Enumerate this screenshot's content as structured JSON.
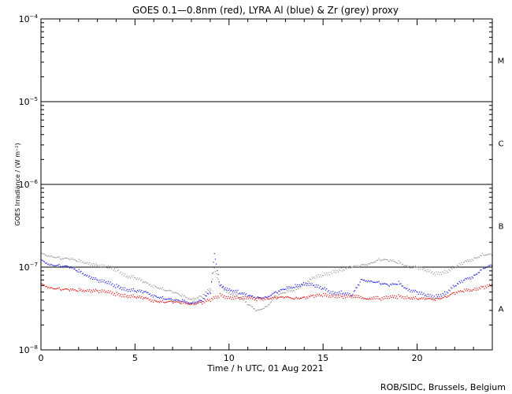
{
  "chart_data": {
    "type": "scatter",
    "title": "GOES 0.1—0.8nm (red), LYRA Al (blue) & Zr (grey) proxy",
    "xlabel": "Time / h UTC, 01 Aug 2021",
    "ylabel": "GOES Irradiance / (W m⁻²)",
    "credit": "ROB/SIDC, Brussels, Belgium",
    "xlim": [
      0,
      24
    ],
    "ylim": [
      1e-08,
      0.0001
    ],
    "yscale": "log",
    "x_ticks": [
      {
        "value": 0,
        "label": "0"
      },
      {
        "value": 5,
        "label": "5"
      },
      {
        "value": 10,
        "label": "10"
      },
      {
        "value": 15,
        "label": "15"
      },
      {
        "value": 20,
        "label": "20"
      }
    ],
    "y_ticks": [
      {
        "value": 1e-08,
        "base": "10",
        "exp": "−8"
      },
      {
        "value": 1e-07,
        "base": "10",
        "exp": "−7"
      },
      {
        "value": 1e-06,
        "base": "10",
        "exp": "−6"
      },
      {
        "value": 1e-05,
        "base": "10",
        "exp": "−5"
      },
      {
        "value": 0.0001,
        "base": "10",
        "exp": "−4"
      }
    ],
    "class_lines": [
      1e-07,
      1e-06,
      1e-05
    ],
    "flare_classes": [
      {
        "label": "A",
        "level": 3.16e-08
      },
      {
        "label": "B",
        "level": 3.16e-07
      },
      {
        "label": "C",
        "level": 3.16e-06
      },
      {
        "label": "M",
        "level": 3.16e-05
      }
    ],
    "series": [
      {
        "color": "#9a9a9a",
        "x": [
          0,
          0.5,
          1,
          1.5,
          2,
          2.5,
          3,
          3.5,
          4,
          4.5,
          5,
          5.5,
          6,
          6.5,
          7,
          7.5,
          8,
          8.5,
          9,
          9.2,
          9.5,
          10,
          10.5,
          11,
          11.5,
          12,
          12.5,
          13,
          13.5,
          14,
          14.5,
          15,
          15.5,
          16,
          16.5,
          17,
          17.5,
          18,
          18.5,
          19,
          19.5,
          20,
          20.5,
          21,
          21.5,
          22,
          22.5,
          23,
          23.5,
          24
        ],
        "y": [
          1.45e-07,
          1.4e-07,
          1.3e-07,
          1.25e-07,
          1.2e-07,
          1.15e-07,
          1.05e-07,
          1e-07,
          9.5e-08,
          8e-08,
          7.5e-08,
          6.5e-08,
          6e-08,
          5.5e-08,
          5e-08,
          4.5e-08,
          4.2e-08,
          4.5e-08,
          5.5e-08,
          1e-07,
          6e-08,
          5e-08,
          4.5e-08,
          3.5e-08,
          3e-08,
          3.5e-08,
          4.5e-08,
          5e-08,
          5.5e-08,
          6.5e-08,
          7.5e-08,
          8e-08,
          9e-08,
          9.5e-08,
          1e-07,
          1.05e-07,
          1.15e-07,
          1.25e-07,
          1.2e-07,
          1.15e-07,
          1.05e-07,
          1e-07,
          9e-08,
          8.5e-08,
          9e-08,
          1e-07,
          1.15e-07,
          1.3e-07,
          1.45e-07,
          1.4e-07
        ]
      },
      {
        "color": "#1f1fdd",
        "x": [
          0,
          0.5,
          1,
          1.5,
          2,
          2.5,
          3,
          3.5,
          4,
          4.5,
          5,
          5.5,
          6,
          6.5,
          7,
          7.5,
          8,
          8.5,
          9,
          9.2,
          9.5,
          10,
          10.5,
          11,
          11.5,
          12,
          12.5,
          13,
          13.5,
          14,
          14.5,
          15,
          15.5,
          16,
          16.5,
          17,
          17.5,
          18,
          18.5,
          19,
          19.5,
          20,
          20.5,
          21,
          21.5,
          22,
          22.5,
          23,
          23.5,
          24
        ],
        "y": [
          1.2e-07,
          1.1e-07,
          1.05e-07,
          1e-07,
          9e-08,
          8e-08,
          7e-08,
          6.5e-08,
          6e-08,
          5.5e-08,
          5.2e-08,
          5e-08,
          4.6e-08,
          4.3e-08,
          4e-08,
          3.9e-08,
          3.8e-08,
          4e-08,
          5e-08,
          1.5e-07,
          6e-08,
          5.5e-08,
          5e-08,
          4.5e-08,
          4.3e-08,
          4.5e-08,
          5e-08,
          5.5e-08,
          6e-08,
          6.5e-08,
          6e-08,
          5.5e-08,
          5e-08,
          5e-08,
          4.5e-08,
          7e-08,
          7e-08,
          6.5e-08,
          6e-08,
          6.5e-08,
          5.5e-08,
          5e-08,
          4.5e-08,
          4.5e-08,
          5e-08,
          6e-08,
          7e-08,
          8e-08,
          1e-07,
          1.05e-07
        ]
      },
      {
        "color": "#e01010",
        "x": [
          0,
          0.5,
          1,
          1.5,
          2,
          2.5,
          3,
          3.5,
          4,
          4.5,
          5,
          5.5,
          6,
          6.5,
          7,
          7.5,
          8,
          8.5,
          9,
          9.5,
          10,
          10.5,
          11,
          11.5,
          12,
          12.5,
          13,
          13.5,
          14,
          14.5,
          15,
          15.5,
          16,
          16.5,
          18,
          18.5,
          19,
          19.5,
          20,
          20.5,
          21,
          21.5,
          22,
          22.5,
          23,
          23.5,
          24
        ],
        "y": [
          6.2e-08,
          5.8e-08,
          5.5e-08,
          5.3e-08,
          5.3e-08,
          5.4e-08,
          5.2e-08,
          5e-08,
          4.8e-08,
          4.6e-08,
          4.4e-08,
          4.2e-08,
          4e-08,
          3.9e-08,
          3.8e-08,
          3.7e-08,
          3.7e-08,
          3.8e-08,
          4e-08,
          4.6e-08,
          4.4e-08,
          4.3e-08,
          4.2e-08,
          4.2e-08,
          4.3e-08,
          4.3e-08,
          4.3e-08,
          4.3e-08,
          4.4e-08,
          4.5e-08,
          4.6e-08,
          4.6e-08,
          4.5e-08,
          4.4e-08,
          4.2e-08,
          4.3e-08,
          4.5e-08,
          4.4e-08,
          4.2e-08,
          4.1e-08,
          4.2e-08,
          4.5e-08,
          4.9e-08,
          5.2e-08,
          5.5e-08,
          5.9e-08,
          6e-08
        ]
      }
    ]
  }
}
